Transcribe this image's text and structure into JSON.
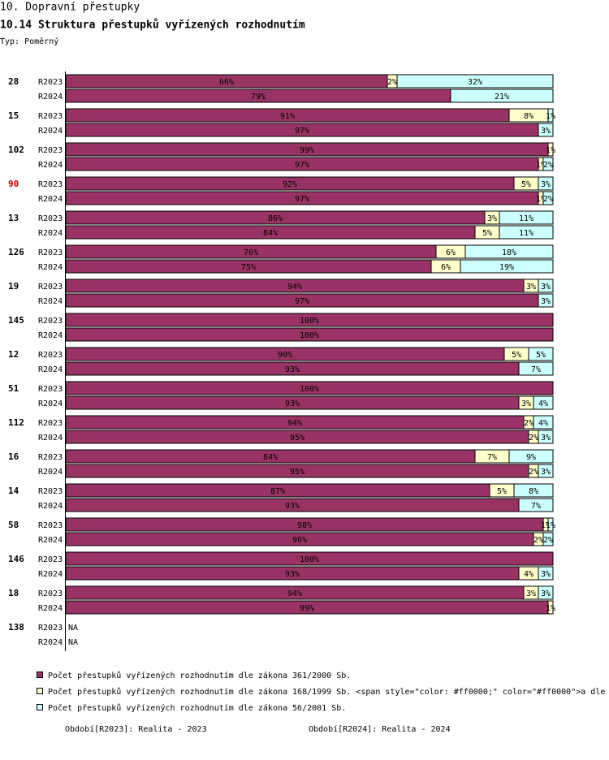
{
  "chart_data": {
    "type": "bar",
    "stacked": true,
    "orientation": "horizontal",
    "section": "10. Dopravní přestupky",
    "title": "10.14 Struktura přestupků vyřízených rozhodnutím",
    "subtitle": "Typ: Poměrný",
    "xlim": [
      0,
      100
    ],
    "na_label": "NA",
    "series": [
      {
        "name": "Počet přestupků vyřízených rozhodnutím dle zákona 361/2000 Sb.",
        "color": "#993366"
      },
      {
        "name": "Počet přestupků vyřízených rozhodnutím dle zákona 168/1999 Sb. <span style=\"color: #ff0000;\" color=\"#ff0000\">a dle",
        "color": "#ffffcc"
      },
      {
        "name": "Počet přestupků vyřízených rozhodnutím dle zákona 56/2001 Sb.",
        "color": "#ccffff"
      }
    ],
    "periods": [
      {
        "text": "Období[R2023]: Realita - 2023",
        "color": "#ff8c1a"
      },
      {
        "text": "Období[R2024]: Realita - 2024",
        "color": "#336699"
      }
    ],
    "groups": [
      {
        "label": "28",
        "rows": [
          {
            "period": "R2023",
            "values": [
              66,
              2,
              32
            ],
            "value_labels": [
              "66%",
              "2%",
              "32%"
            ]
          },
          {
            "period": "R2024",
            "values": [
              79,
              null,
              21
            ],
            "value_labels": [
              "79%",
              null,
              "21%"
            ]
          }
        ]
      },
      {
        "label": "15",
        "rows": [
          {
            "period": "R2023",
            "values": [
              91,
              8,
              1
            ],
            "value_labels": [
              "91%",
              "8%",
              "1%"
            ]
          },
          {
            "period": "R2024",
            "values": [
              97,
              null,
              3
            ],
            "value_labels": [
              "97%",
              null,
              "3%"
            ]
          }
        ]
      },
      {
        "label": "102",
        "rows": [
          {
            "period": "R2023",
            "values": [
              99,
              1,
              null
            ],
            "value_labels": [
              "99%",
              "1%",
              null
            ]
          },
          {
            "period": "R2024",
            "values": [
              97,
              1,
              2
            ],
            "value_labels": [
              "97%",
              "1%",
              "2%"
            ]
          }
        ]
      },
      {
        "label": "90",
        "color": "#cc0000",
        "rows": [
          {
            "period": "R2023",
            "values": [
              92,
              5,
              3
            ],
            "value_labels": [
              "92%",
              "5%",
              "3%"
            ]
          },
          {
            "period": "R2024",
            "values": [
              97,
              1,
              2
            ],
            "value_labels": [
              "97%",
              "1%",
              "2%"
            ]
          }
        ]
      },
      {
        "label": "13",
        "rows": [
          {
            "period": "R2023",
            "values": [
              86,
              3,
              11
            ],
            "value_labels": [
              "86%",
              "3%",
              "11%"
            ]
          },
          {
            "period": "R2024",
            "values": [
              84,
              5,
              11
            ],
            "value_labels": [
              "84%",
              "5%",
              "11%"
            ]
          }
        ]
      },
      {
        "label": "126",
        "rows": [
          {
            "period": "R2023",
            "values": [
              76,
              6,
              18
            ],
            "value_labels": [
              "76%",
              "6%",
              "18%"
            ]
          },
          {
            "period": "R2024",
            "values": [
              75,
              6,
              19
            ],
            "value_labels": [
              "75%",
              "6%",
              "19%"
            ]
          }
        ]
      },
      {
        "label": "19",
        "rows": [
          {
            "period": "R2023",
            "values": [
              94,
              3,
              3
            ],
            "value_labels": [
              "94%",
              "3%",
              "3%"
            ]
          },
          {
            "period": "R2024",
            "values": [
              97,
              null,
              3
            ],
            "value_labels": [
              "97%",
              null,
              "3%"
            ]
          }
        ]
      },
      {
        "label": "145",
        "rows": [
          {
            "period": "R2023",
            "values": [
              100,
              null,
              null
            ],
            "value_labels": [
              "100%",
              null,
              null
            ]
          },
          {
            "period": "R2024",
            "values": [
              100,
              null,
              null
            ],
            "value_labels": [
              "100%",
              null,
              null
            ]
          }
        ]
      },
      {
        "label": "12",
        "rows": [
          {
            "period": "R2023",
            "values": [
              90,
              5,
              5
            ],
            "value_labels": [
              "90%",
              "5%",
              "5%"
            ]
          },
          {
            "period": "R2024",
            "values": [
              93,
              null,
              7
            ],
            "value_labels": [
              "93%",
              null,
              "7%"
            ]
          }
        ]
      },
      {
        "label": "51",
        "rows": [
          {
            "period": "R2023",
            "values": [
              100,
              null,
              null
            ],
            "value_labels": [
              "100%",
              null,
              null
            ]
          },
          {
            "period": "R2024",
            "values": [
              93,
              3,
              4
            ],
            "value_labels": [
              "93%",
              "3%",
              "4%"
            ]
          }
        ]
      },
      {
        "label": "112",
        "rows": [
          {
            "period": "R2023",
            "values": [
              94,
              2,
              4
            ],
            "value_labels": [
              "94%",
              "2%",
              "4%"
            ]
          },
          {
            "period": "R2024",
            "values": [
              95,
              2,
              3
            ],
            "value_labels": [
              "95%",
              "2%",
              "3%"
            ]
          }
        ]
      },
      {
        "label": "16",
        "rows": [
          {
            "period": "R2023",
            "values": [
              84,
              7,
              9
            ],
            "value_labels": [
              "84%",
              "7%",
              "9%"
            ]
          },
          {
            "period": "R2024",
            "values": [
              95,
              2,
              3
            ],
            "value_labels": [
              "95%",
              "2%",
              "3%"
            ]
          }
        ]
      },
      {
        "label": "14",
        "rows": [
          {
            "period": "R2023",
            "values": [
              87,
              5,
              8
            ],
            "value_labels": [
              "87%",
              "5%",
              "8%"
            ]
          },
          {
            "period": "R2024",
            "values": [
              93,
              null,
              7
            ],
            "value_labels": [
              "93%",
              null,
              "7%"
            ]
          }
        ]
      },
      {
        "label": "58",
        "rows": [
          {
            "period": "R2023",
            "values": [
              98,
              1,
              1
            ],
            "value_labels": [
              "98%",
              "1%",
              "1%"
            ]
          },
          {
            "period": "R2024",
            "values": [
              96,
              2,
              2
            ],
            "value_labels": [
              "96%",
              "2%",
              "2%"
            ]
          }
        ]
      },
      {
        "label": "146",
        "rows": [
          {
            "period": "R2023",
            "values": [
              100,
              null,
              null
            ],
            "value_labels": [
              "100%",
              null,
              null
            ]
          },
          {
            "period": "R2024",
            "values": [
              93,
              4,
              3
            ],
            "value_labels": [
              "93%",
              "4%",
              "3%"
            ]
          }
        ]
      },
      {
        "label": "18",
        "rows": [
          {
            "period": "R2023",
            "values": [
              94,
              3,
              3
            ],
            "value_labels": [
              "94%",
              "3%",
              "3%"
            ]
          },
          {
            "period": "R2024",
            "values": [
              99,
              1,
              null
            ],
            "value_labels": [
              "99%",
              "1%",
              null
            ]
          }
        ]
      },
      {
        "label": "138",
        "rows": [
          {
            "period": "R2023",
            "values": null
          },
          {
            "period": "R2024",
            "values": null
          }
        ]
      }
    ]
  }
}
